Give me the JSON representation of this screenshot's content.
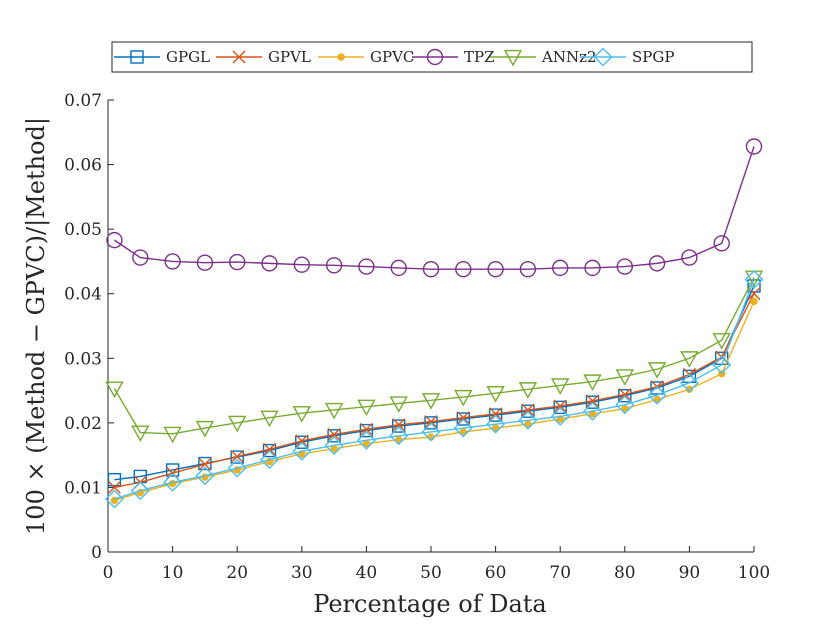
{
  "chart_data": {
    "type": "line",
    "title": "",
    "xlabel": "Percentage of Data",
    "ylabel": "100 × (Method − GPVC)/|Method|",
    "xlim": [
      0,
      100
    ],
    "ylim": [
      0,
      0.07
    ],
    "xticks": [
      0,
      10,
      20,
      30,
      40,
      50,
      60,
      70,
      80,
      90,
      100
    ],
    "yticks": [
      0,
      0.01,
      0.02,
      0.03,
      0.04,
      0.05,
      0.06,
      0.07
    ],
    "xtick_labels": [
      "0",
      "10",
      "20",
      "30",
      "40",
      "50",
      "60",
      "70",
      "80",
      "90",
      "100"
    ],
    "ytick_labels": [
      "0",
      "0.01",
      "0.02",
      "0.03",
      "0.04",
      "0.05",
      "0.06",
      "0.07"
    ],
    "grid": false,
    "legend_position": "top",
    "x": [
      1,
      5,
      10,
      15,
      20,
      25,
      30,
      35,
      40,
      45,
      50,
      55,
      60,
      65,
      70,
      75,
      80,
      85,
      90,
      95,
      100
    ],
    "series": [
      {
        "name": "GPGL",
        "color": "#0072BD",
        "marker": "square",
        "values": [
          0.0112,
          0.0117,
          0.0127,
          0.0137,
          0.0147,
          0.0157,
          0.017,
          0.018,
          0.0188,
          0.0195,
          0.02,
          0.0206,
          0.0212,
          0.0218,
          0.0224,
          0.0232,
          0.0242,
          0.0254,
          0.0272,
          0.03,
          0.0412
        ]
      },
      {
        "name": "GPVL",
        "color": "#D95319",
        "marker": "x",
        "values": [
          0.01,
          0.0108,
          0.0122,
          0.0136,
          0.0148,
          0.0159,
          0.0172,
          0.0182,
          0.019,
          0.0197,
          0.0202,
          0.0208,
          0.0214,
          0.022,
          0.0226,
          0.0234,
          0.0244,
          0.0256,
          0.0275,
          0.0302,
          0.04
        ]
      },
      {
        "name": "GPVC",
        "color": "#EDB120",
        "marker": "dot",
        "values": [
          0.008,
          0.0092,
          0.0106,
          0.0116,
          0.0127,
          0.014,
          0.0152,
          0.016,
          0.0168,
          0.0174,
          0.0178,
          0.0186,
          0.0192,
          0.0198,
          0.0206,
          0.0214,
          0.0222,
          0.0236,
          0.0252,
          0.0276,
          0.0388
        ]
      },
      {
        "name": "TPZ",
        "color": "#7E2F8E",
        "marker": "circle",
        "values": [
          0.0483,
          0.0456,
          0.045,
          0.0448,
          0.0449,
          0.0447,
          0.0445,
          0.0444,
          0.0442,
          0.044,
          0.0438,
          0.0438,
          0.0438,
          0.0438,
          0.044,
          0.044,
          0.0442,
          0.0447,
          0.0456,
          0.0478,
          0.0628
        ]
      },
      {
        "name": "ANNz2",
        "color": "#77AC30",
        "marker": "triangle-down",
        "values": [
          0.0253,
          0.0185,
          0.0183,
          0.0192,
          0.02,
          0.0208,
          0.0215,
          0.022,
          0.0225,
          0.023,
          0.0235,
          0.024,
          0.0246,
          0.0252,
          0.0258,
          0.0264,
          0.0272,
          0.0283,
          0.03,
          0.0328,
          0.0425
        ]
      },
      {
        "name": "SPGP",
        "color": "#4DBEEE",
        "marker": "diamond",
        "values": [
          0.0082,
          0.0095,
          0.0108,
          0.0118,
          0.013,
          0.0143,
          0.0156,
          0.0165,
          0.0173,
          0.018,
          0.0186,
          0.0192,
          0.0198,
          0.0204,
          0.021,
          0.0218,
          0.0228,
          0.0243,
          0.0262,
          0.029,
          0.0422
        ]
      }
    ]
  }
}
